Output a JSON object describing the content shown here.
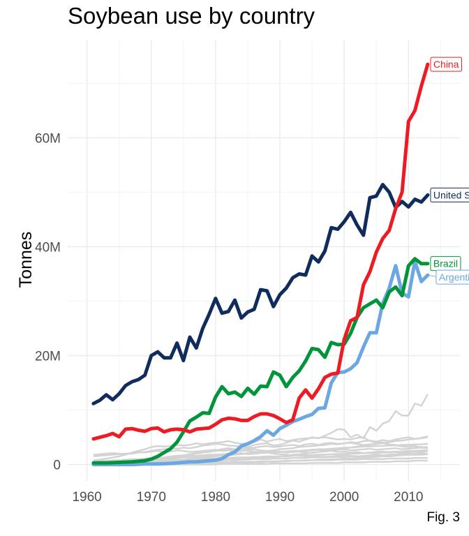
{
  "chart_data": {
    "type": "line",
    "title": "Soybean use by country",
    "caption": "Fig. 3",
    "xlabel": "",
    "ylabel": "Tonnes",
    "xlim": [
      1957,
      2018
    ],
    "ylim": [
      -3000000,
      78000000
    ],
    "x_ticks": [
      1960,
      1970,
      1980,
      1990,
      2000,
      2010
    ],
    "y_ticks": [
      0,
      20000000,
      40000000,
      60000000
    ],
    "y_tick_labels": [
      "0",
      "20M",
      "40M",
      "60M"
    ],
    "grid": true,
    "legend": "none",
    "x": [
      1961,
      1962,
      1963,
      1964,
      1965,
      1966,
      1967,
      1968,
      1969,
      1970,
      1971,
      1972,
      1973,
      1974,
      1975,
      1976,
      1977,
      1978,
      1979,
      1980,
      1981,
      1982,
      1983,
      1984,
      1985,
      1986,
      1987,
      1988,
      1989,
      1990,
      1991,
      1992,
      1993,
      1994,
      1995,
      1996,
      1997,
      1998,
      1999,
      2000,
      2001,
      2002,
      2003,
      2004,
      2005,
      2006,
      2007,
      2008,
      2009,
      2010,
      2011,
      2012,
      2013
    ],
    "series": [
      {
        "name": "China",
        "color": "#ED1C24",
        "label_bg": "#ffffff",
        "values": [
          4.7,
          5.0,
          5.3,
          5.7,
          5.1,
          6.5,
          6.6,
          6.3,
          6.1,
          6.6,
          6.7,
          6.0,
          6.4,
          6.5,
          6.4,
          6.0,
          6.5,
          6.6,
          6.7,
          7.4,
          8.2,
          8.5,
          8.4,
          8.1,
          8.1,
          8.8,
          9.3,
          9.3,
          9.0,
          8.4,
          7.7,
          8.2,
          12.2,
          13.7,
          12.2,
          13.9,
          16.0,
          16.6,
          16.8,
          23.0,
          26.4,
          27.0,
          33.0,
          35.4,
          39.0,
          41.5,
          43.0,
          47.0,
          50.0,
          63.0,
          65.0,
          69.5,
          73.5
        ]
      },
      {
        "name": "United States",
        "color": "#0F2C5C",
        "label_bg": "#ffffff",
        "values": [
          11.2,
          11.8,
          12.8,
          11.9,
          13.0,
          14.5,
          15.2,
          15.6,
          16.4,
          20.0,
          20.7,
          19.6,
          19.6,
          22.3,
          19.1,
          23.4,
          21.4,
          25.0,
          27.6,
          30.5,
          27.8,
          28.1,
          30.2,
          26.9,
          28.0,
          28.5,
          32.1,
          31.9,
          29.0,
          31.2,
          32.4,
          34.3,
          35.0,
          34.8,
          38.3,
          37.2,
          39.2,
          43.5,
          43.2,
          44.6,
          46.3,
          44.0,
          42.1,
          49.0,
          49.3,
          51.4,
          50.0,
          47.2,
          48.3,
          47.3,
          48.7,
          48.2,
          49.5
        ]
      },
      {
        "name": "Brazil",
        "color": "#00953A",
        "label_bg": "#ffffff",
        "values": [
          0.3,
          0.3,
          0.3,
          0.35,
          0.4,
          0.45,
          0.5,
          0.6,
          0.7,
          1.0,
          1.5,
          2.2,
          2.9,
          4.1,
          6.0,
          8.0,
          8.7,
          9.5,
          9.4,
          12.4,
          14.3,
          13.0,
          13.3,
          12.5,
          14.0,
          12.9,
          14.4,
          14.3,
          17.0,
          16.4,
          14.3,
          16.0,
          17.2,
          19.0,
          21.3,
          21.1,
          19.7,
          22.4,
          22.0,
          22.1,
          24.1,
          27.0,
          28.8,
          29.5,
          30.2,
          28.8,
          31.7,
          32.6,
          31.0,
          36.5,
          37.8,
          36.9,
          36.9
        ]
      },
      {
        "name": "Argentina",
        "color": "#6BA7E0",
        "label_bg": "#ffffff",
        "values": [
          0.0,
          0.0,
          0.0,
          0.0,
          0.0,
          0.0,
          0.0,
          0.05,
          0.1,
          0.1,
          0.1,
          0.15,
          0.2,
          0.3,
          0.4,
          0.5,
          0.5,
          0.6,
          0.7,
          0.8,
          1.1,
          1.8,
          2.3,
          3.4,
          3.8,
          4.4,
          5.1,
          6.2,
          5.4,
          6.6,
          7.2,
          7.9,
          8.3,
          8.8,
          9.2,
          10.3,
          10.4,
          15.0,
          16.9,
          17.0,
          17.6,
          18.7,
          21.6,
          24.2,
          24.2,
          29.6,
          32.4,
          36.5,
          31.5,
          30.8,
          37.3,
          33.6,
          34.8
        ]
      }
    ],
    "background_series": [
      {
        "color": "#D3D3D3",
        "values": [
          1.5,
          1.6,
          1.7,
          1.8,
          1.9,
          2.0,
          2.0,
          2.2,
          2.3,
          2.5,
          2.7,
          2.8,
          3.0,
          2.9,
          3.1,
          3.0,
          3.2,
          3.5,
          3.6,
          3.8,
          3.7,
          3.5,
          3.4,
          3.3,
          3.2,
          3.6,
          3.8,
          3.9,
          3.5,
          3.6,
          4.0,
          4.4,
          4.2,
          4.6,
          5.0,
          4.8,
          5.3,
          5.8,
          6.5,
          6.4,
          5.0,
          5.5,
          4.8,
          6.9,
          6.2,
          7.5,
          8.0,
          9.8,
          9.0,
          9.0,
          11.2,
          10.8,
          12.9
        ]
      },
      {
        "color": "#D3D3D3",
        "values": [
          0.8,
          0.9,
          1.1,
          1.3,
          1.5,
          1.8,
          2.2,
          2.5,
          2.8,
          3.2,
          3.4,
          3.3,
          3.4,
          3.6,
          3.5,
          3.6,
          3.9,
          3.7,
          3.9,
          4.0,
          4.1,
          4.3,
          4.0,
          3.8,
          3.9,
          4.1,
          4.6,
          4.2,
          4.5,
          4.7,
          4.3,
          4.5,
          4.7,
          4.8,
          4.9,
          4.9,
          5.0,
          4.8,
          4.6,
          4.7,
          4.6,
          4.9,
          5.0,
          4.3,
          4.0,
          4.1,
          3.7,
          3.6,
          3.3,
          3.2,
          3.4,
          3.1,
          3.0
        ]
      },
      {
        "color": "#D3D3D3",
        "values": [
          0.2,
          0.2,
          0.3,
          0.3,
          0.4,
          0.5,
          0.6,
          0.7,
          0.8,
          1.0,
          1.1,
          1.3,
          1.4,
          1.5,
          1.6,
          1.8,
          2.0,
          2.2,
          2.4,
          2.6,
          2.8,
          3.0,
          2.8,
          2.9,
          3.0,
          3.1,
          3.3,
          3.4,
          3.2,
          3.3,
          3.5,
          3.6,
          3.4,
          3.7,
          3.8,
          3.6,
          3.9,
          4.0,
          3.8,
          3.9,
          4.0,
          3.8,
          3.6,
          3.7,
          3.8,
          3.9,
          3.7,
          3.5,
          3.4,
          3.6,
          3.3,
          3.2,
          3.1
        ]
      },
      {
        "color": "#D3D3D3",
        "values": [
          0.1,
          0.1,
          0.1,
          0.2,
          0.2,
          0.2,
          0.3,
          0.3,
          0.4,
          0.4,
          0.5,
          0.6,
          0.7,
          0.8,
          0.9,
          1.0,
          1.1,
          1.2,
          1.4,
          1.5,
          1.6,
          1.8,
          1.9,
          2.0,
          2.1,
          2.2,
          2.4,
          2.5,
          2.6,
          2.8,
          2.9,
          3.0,
          3.2,
          3.3,
          3.4,
          3.5,
          3.6,
          3.8,
          3.7,
          3.9,
          4.1,
          4.0,
          4.3,
          4.4,
          4.2,
          4.5,
          4.3,
          4.6,
          4.8,
          5.0,
          4.7,
          4.9,
          5.2
        ]
      },
      {
        "color": "#D3D3D3",
        "values": [
          1.8,
          1.9,
          2.0,
          2.1,
          2.0,
          1.9,
          2.1,
          2.3,
          2.2,
          2.4,
          2.5,
          2.3,
          2.4,
          2.6,
          2.5,
          2.3,
          2.4,
          2.5,
          2.6,
          2.7,
          2.5,
          2.6,
          2.4,
          2.5,
          2.7,
          2.8,
          2.6,
          2.5,
          2.4,
          2.3,
          2.2,
          2.3,
          2.4,
          2.2,
          2.1,
          2.3,
          2.4,
          2.5,
          2.3,
          2.4,
          2.2,
          2.3,
          2.1,
          2.2,
          2.3,
          2.4,
          2.2,
          2.3,
          2.1,
          2.2,
          2.4,
          2.3,
          2.5
        ]
      },
      {
        "color": "#D3D3D3",
        "values": [
          0.5,
          0.5,
          0.6,
          0.6,
          0.7,
          0.7,
          0.8,
          0.8,
          0.9,
          1.0,
          1.0,
          1.1,
          1.1,
          1.2,
          1.3,
          1.3,
          1.4,
          1.5,
          1.5,
          1.6,
          1.7,
          1.7,
          1.8,
          1.9,
          2.0,
          2.0,
          2.1,
          2.2,
          2.2,
          2.3,
          2.4,
          2.5,
          2.5,
          2.6,
          2.7,
          2.8,
          2.8,
          2.9,
          3.0,
          3.1,
          3.1,
          3.2,
          3.3,
          3.3,
          3.4,
          3.4,
          3.5,
          3.5,
          3.6,
          3.6,
          3.7,
          3.7,
          3.8
        ]
      },
      {
        "color": "#D3D3D3",
        "values": [
          0.3,
          0.3,
          0.4,
          0.5,
          0.6,
          0.6,
          0.7,
          0.8,
          0.9,
          1.0,
          1.2,
          1.3,
          1.5,
          1.6,
          1.7,
          1.9,
          2.1,
          2.2,
          2.3,
          2.5,
          2.6,
          2.8,
          2.7,
          2.6,
          2.5,
          2.4,
          2.3,
          2.2,
          2.0,
          1.9,
          1.8,
          1.7,
          1.6,
          1.5,
          1.6,
          1.5,
          1.4,
          1.5,
          1.6,
          1.7,
          1.6,
          1.5,
          1.6,
          1.7,
          1.8,
          1.7,
          1.8,
          1.9,
          2.0,
          1.9,
          2.0,
          2.1,
          2.0
        ]
      },
      {
        "color": "#D3D3D3",
        "values": [
          0.0,
          0.0,
          0.0,
          0.0,
          0.1,
          0.1,
          0.1,
          0.1,
          0.2,
          0.2,
          0.2,
          0.3,
          0.3,
          0.3,
          0.4,
          0.4,
          0.5,
          0.5,
          0.6,
          0.6,
          0.7,
          0.8,
          0.8,
          0.9,
          1.0,
          1.1,
          1.2,
          1.3,
          1.4,
          1.5,
          1.6,
          1.8,
          1.9,
          2.0,
          2.2,
          2.3,
          2.5,
          2.6,
          2.8,
          3.0,
          3.1,
          3.3,
          3.5,
          3.6,
          3.8,
          4.0,
          4.1,
          4.3,
          4.4,
          4.6,
          4.7,
          4.8,
          5.0
        ]
      },
      {
        "color": "#D3D3D3",
        "values": [
          0.6,
          0.7,
          0.7,
          0.8,
          0.8,
          0.9,
          1.0,
          1.0,
          1.1,
          1.2,
          1.2,
          1.3,
          1.4,
          1.4,
          1.5,
          1.6,
          1.6,
          1.7,
          1.8,
          1.8,
          1.9,
          2.0,
          2.0,
          2.1,
          1.9,
          2.0,
          2.1,
          2.2,
          2.3,
          2.4,
          2.2,
          2.3,
          2.4,
          2.5,
          2.6,
          2.7,
          2.5,
          2.6,
          2.7,
          2.8,
          2.6,
          2.7,
          2.8,
          2.9,
          2.7,
          2.8,
          2.9,
          3.0,
          2.8,
          2.9,
          3.0,
          3.1,
          3.2
        ]
      },
      {
        "color": "#D3D3D3",
        "values": [
          0.1,
          0.1,
          0.2,
          0.2,
          0.3,
          0.3,
          0.3,
          0.4,
          0.4,
          0.5,
          0.5,
          0.6,
          0.6,
          0.7,
          0.7,
          0.8,
          0.8,
          0.9,
          0.9,
          1.0,
          1.0,
          1.1,
          1.1,
          1.2,
          1.2,
          1.3,
          1.3,
          1.4,
          1.4,
          1.5,
          1.5,
          1.6,
          1.6,
          1.7,
          1.7,
          1.8,
          1.8,
          1.9,
          1.9,
          2.0,
          2.0,
          2.1,
          2.1,
          2.2,
          2.2,
          2.3,
          2.3,
          2.4,
          2.4,
          2.5,
          2.5,
          2.6,
          2.6
        ]
      },
      {
        "color": "#D3D3D3",
        "values": [
          0.4,
          0.4,
          0.5,
          0.5,
          0.5,
          0.6,
          0.6,
          0.7,
          0.7,
          0.7,
          0.8,
          0.8,
          0.9,
          0.9,
          0.9,
          1.0,
          1.0,
          1.1,
          1.1,
          1.1,
          1.2,
          1.2,
          1.3,
          1.3,
          1.3,
          1.4,
          1.4,
          1.5,
          1.5,
          1.5,
          1.6,
          1.6,
          1.7,
          1.7,
          1.7,
          1.8,
          1.8,
          1.9,
          1.9,
          1.9,
          2.0,
          2.0,
          2.1,
          2.1,
          2.1,
          2.2,
          2.2,
          2.3,
          2.3,
          2.3,
          2.4,
          2.4,
          2.5
        ]
      },
      {
        "color": "#D3D3D3",
        "values": [
          0.0,
          0.0,
          0.0,
          0.0,
          0.0,
          0.0,
          0.0,
          0.0,
          0.0,
          0.0,
          0.0,
          0.0,
          0.1,
          0.1,
          0.1,
          0.1,
          0.1,
          0.2,
          0.2,
          0.2,
          0.2,
          0.3,
          0.3,
          0.3,
          0.4,
          0.4,
          0.4,
          0.5,
          0.5,
          0.6,
          0.6,
          0.7,
          0.7,
          0.8,
          0.8,
          0.9,
          0.9,
          1.0,
          1.0,
          1.1,
          1.1,
          1.2,
          1.3,
          1.3,
          1.4,
          1.5,
          1.5,
          1.6,
          1.7,
          1.8,
          1.8,
          1.9,
          2.0
        ]
      },
      {
        "color": "#D3D3D3",
        "values": [
          0.2,
          0.2,
          0.2,
          0.3,
          0.3,
          0.3,
          0.3,
          0.4,
          0.4,
          0.4,
          0.5,
          0.5,
          0.5,
          0.6,
          0.6,
          0.6,
          0.7,
          0.7,
          0.7,
          0.8,
          0.8,
          0.8,
          0.9,
          0.9,
          0.9,
          1.0,
          1.0,
          1.0,
          1.1,
          1.1,
          1.1,
          1.2,
          1.2,
          1.2,
          1.3,
          1.3,
          1.3,
          1.4,
          1.4,
          1.4,
          1.5,
          1.5,
          1.5,
          1.6,
          1.6,
          1.6,
          1.7,
          1.7,
          1.7,
          1.8,
          1.8,
          1.8,
          1.9
        ]
      },
      {
        "color": "#D3D3D3",
        "values": [
          0.0,
          0.0,
          0.0,
          0.1,
          0.1,
          0.1,
          0.1,
          0.1,
          0.1,
          0.2,
          0.2,
          0.2,
          0.2,
          0.2,
          0.3,
          0.3,
          0.3,
          0.3,
          0.4,
          0.4,
          0.4,
          0.4,
          0.5,
          0.5,
          0.5,
          0.5,
          0.6,
          0.6,
          0.6,
          0.6,
          0.7,
          0.7,
          0.7,
          0.7,
          0.8,
          0.8,
          0.8,
          0.8,
          0.9,
          0.9,
          0.9,
          0.9,
          1.0,
          1.0,
          1.0,
          1.0,
          1.1,
          1.1,
          1.1,
          1.1,
          1.2,
          1.2,
          1.2
        ]
      },
      {
        "color": "#D3D3D3",
        "values": [
          0.0,
          0.0,
          0.0,
          0.0,
          0.0,
          0.0,
          0.0,
          0.0,
          0.0,
          0.0,
          0.0,
          0.0,
          0.0,
          0.0,
          0.0,
          0.0,
          0.0,
          0.0,
          0.0,
          0.0,
          0.1,
          0.1,
          0.1,
          0.1,
          0.1,
          0.1,
          0.1,
          0.1,
          0.2,
          0.2,
          0.2,
          0.2,
          0.2,
          0.2,
          0.3,
          0.3,
          0.3,
          0.3,
          0.3,
          0.4,
          0.4,
          0.4,
          0.4,
          0.5,
          0.5,
          0.5,
          0.5,
          0.6,
          0.6,
          0.6,
          0.7,
          0.7,
          0.7
        ]
      }
    ]
  }
}
